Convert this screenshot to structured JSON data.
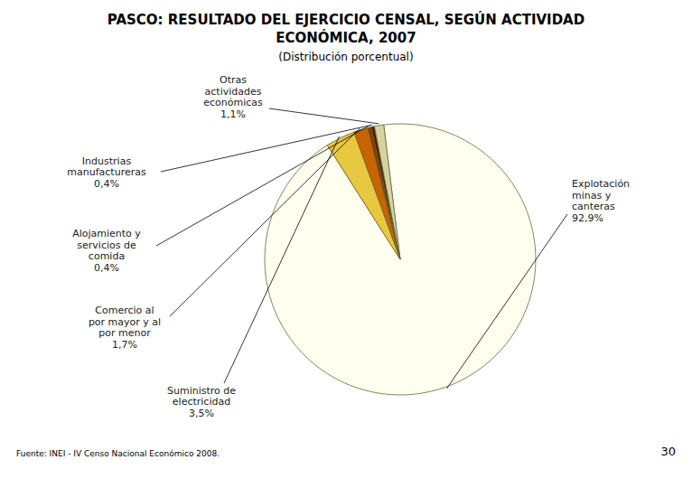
{
  "chart_data": {
    "type": "pie",
    "title": "PASCO: RESULTADO DEL EJERCICIO CENSAL, SEGÚN ACTIVIDAD\nECONÓMICA, 2007",
    "subtitle": "(Distribución porcentual)",
    "annotations": [
      "Fuente: INEI - IV Censo Nacional Económico 2008.",
      "30"
    ],
    "categories": [
      "Explotación\nminas y\ncanteras",
      "Suministro de\nelectricidad",
      "Comercio al\npor mayor y al\npor menor",
      "Alojamiento y\nservicios de\ncomida",
      "Industrias\nmanufactureras",
      "Otras\nactividades\neconómicas"
    ],
    "values": [
      92.9,
      3.5,
      1.7,
      0.4,
      0.4,
      1.1
    ],
    "value_labels": [
      "92,9%",
      "3,5%",
      "1,7%",
      "0,4%",
      "0,4%",
      "1,1%"
    ],
    "colors": [
      "#FFFFF0",
      "#E8C840",
      "#C86400",
      "#8B3300",
      "#5A1A00",
      "#D4D4A0"
    ],
    "data_labels": true
  }
}
